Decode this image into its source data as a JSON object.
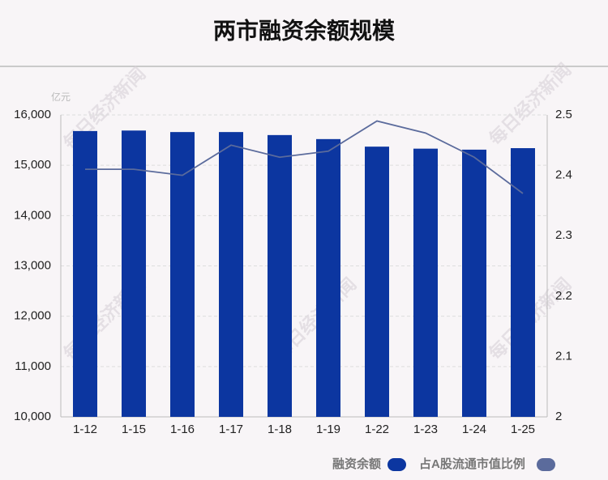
{
  "chart_data": {
    "type": "bar-line",
    "title": "两市融资余额规模",
    "unit": "亿元",
    "watermark": "每日经济新闻",
    "categories": [
      "1-12",
      "1-15",
      "1-16",
      "1-17",
      "1-18",
      "1-19",
      "1-22",
      "1-23",
      "1-24",
      "1-25"
    ],
    "series": [
      {
        "name": "融资余额",
        "color": "#0c36a0",
        "type": "bar",
        "values": [
          15680,
          15690,
          15660,
          15660,
          15600,
          15520,
          15370,
          15330,
          15310,
          15340
        ]
      },
      {
        "name": "占A股流通市值比例",
        "color": "#5b6b9c",
        "type": "line",
        "axis": "y2",
        "values": [
          2.41,
          2.41,
          2.4,
          2.45,
          2.43,
          2.44,
          2.49,
          2.47,
          2.43,
          2.37
        ]
      }
    ],
    "ylim": [
      10000,
      16000
    ],
    "yticks": [
      {
        "value": 10000,
        "label": "10,000"
      },
      {
        "value": 11000,
        "label": "11,000"
      },
      {
        "value": 12000,
        "label": "12,000"
      },
      {
        "value": 13000,
        "label": "13,000"
      },
      {
        "value": 14000,
        "label": "14,000"
      },
      {
        "value": 15000,
        "label": "15,000"
      },
      {
        "value": 16000,
        "label": "16,000"
      }
    ],
    "y2lim": [
      2,
      2.5
    ],
    "y2ticks": [
      2,
      2.1,
      2.2,
      2.3,
      2.4,
      2.5
    ],
    "grid": true
  }
}
